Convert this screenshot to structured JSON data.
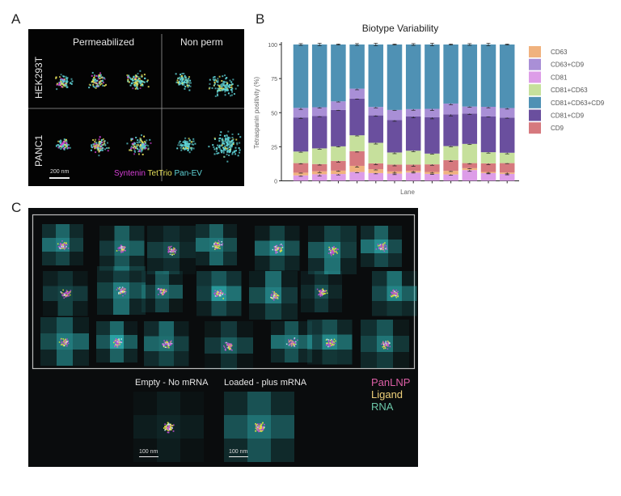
{
  "panels": {
    "a": {
      "letter": "A",
      "column_headers": [
        "Permeabilized",
        "Non perm"
      ],
      "row_headers": [
        "HEK293T",
        "PANC1"
      ],
      "scale_bar": "200 nm",
      "channels": [
        {
          "name": "Syntenin",
          "color": "#d63fd6"
        },
        {
          "name": "TetTrio",
          "color": "#e6e05a"
        },
        {
          "name": "Pan-EV",
          "color": "#5fd4d8"
        }
      ]
    },
    "b": {
      "letter": "B"
    },
    "c": {
      "letter": "C",
      "examples": [
        {
          "label": "Empty - No mRNA",
          "scale_bar": "100 nm"
        },
        {
          "label": "Loaded - plus mRNA",
          "scale_bar": "100 nm"
        }
      ],
      "channels": [
        {
          "name": "PanLNP",
          "color": "#dd5fa6"
        },
        {
          "name": "Ligand",
          "color": "#efd07a"
        },
        {
          "name": "RNA",
          "color": "#6bc7a8"
        }
      ]
    }
  },
  "chart_data": {
    "type": "bar",
    "stacked": true,
    "title": "Biotype Variability",
    "xlabel": "Lane",
    "ylabel": "Tetraspanin positivity (%)",
    "ylim": [
      0,
      100
    ],
    "yticks": [
      0,
      25,
      50,
      75,
      100
    ],
    "categories": [
      "1",
      "2",
      "3",
      "4",
      "5",
      "6",
      "7",
      "8",
      "9",
      "10",
      "11",
      "12"
    ],
    "x_tick_labels_shown": false,
    "legend_position": "right",
    "legend_order": [
      "CD63",
      "CD63+CD9",
      "CD81",
      "CD81+CD63",
      "CD81+CD63+CD9",
      "CD81+CD9",
      "CD9"
    ],
    "series": [
      {
        "name": "CD81",
        "color": "#dd9de8",
        "values": [
          4.0,
          4.8,
          5.0,
          6.5,
          5.7,
          5.3,
          6.1,
          5.1,
          4.7,
          7.9,
          5.7,
          5.1
        ]
      },
      {
        "name": "CD63",
        "color": "#f0b27e",
        "values": [
          2.0,
          2.2,
          2.5,
          4.5,
          2.8,
          1.6,
          1.2,
          1.4,
          2.6,
          1.4,
          0.8,
          1.0
        ]
      },
      {
        "name": "CD9",
        "color": "#d6797e",
        "values": [
          7.0,
          5.3,
          7.1,
          10.7,
          4.3,
          5.0,
          4.6,
          5.6,
          7.9,
          3.7,
          6.3,
          6.9
        ]
      },
      {
        "name": "CD81+CD63",
        "color": "#c6e09c",
        "values": [
          8.5,
          11.5,
          10.7,
          11.7,
          15.1,
          8.9,
          10.2,
          7.9,
          10.3,
          14.1,
          8.2,
          7.6
        ]
      },
      {
        "name": "CD81+CD9",
        "color": "#6a4f9e",
        "values": [
          25.0,
          23.7,
          26.7,
          26.9,
          20.1,
          23.7,
          25.1,
          26.6,
          23.3,
          22.3,
          26.2,
          25.8
        ]
      },
      {
        "name": "CD63+CD9",
        "color": "#a98fd6",
        "values": [
          7.0,
          6.5,
          6.3,
          7.3,
          6.2,
          7.5,
          5.4,
          6.2,
          7.9,
          5.1,
          7.1,
          7.0
        ]
      },
      {
        "name": "CD81+CD63+CD9",
        "color": "#4f91b4",
        "values": [
          46.5,
          46.0,
          41.7,
          32.4,
          45.8,
          48.0,
          47.4,
          47.2,
          43.3,
          45.5,
          45.7,
          46.6
        ]
      }
    ],
    "error_bars": true
  }
}
